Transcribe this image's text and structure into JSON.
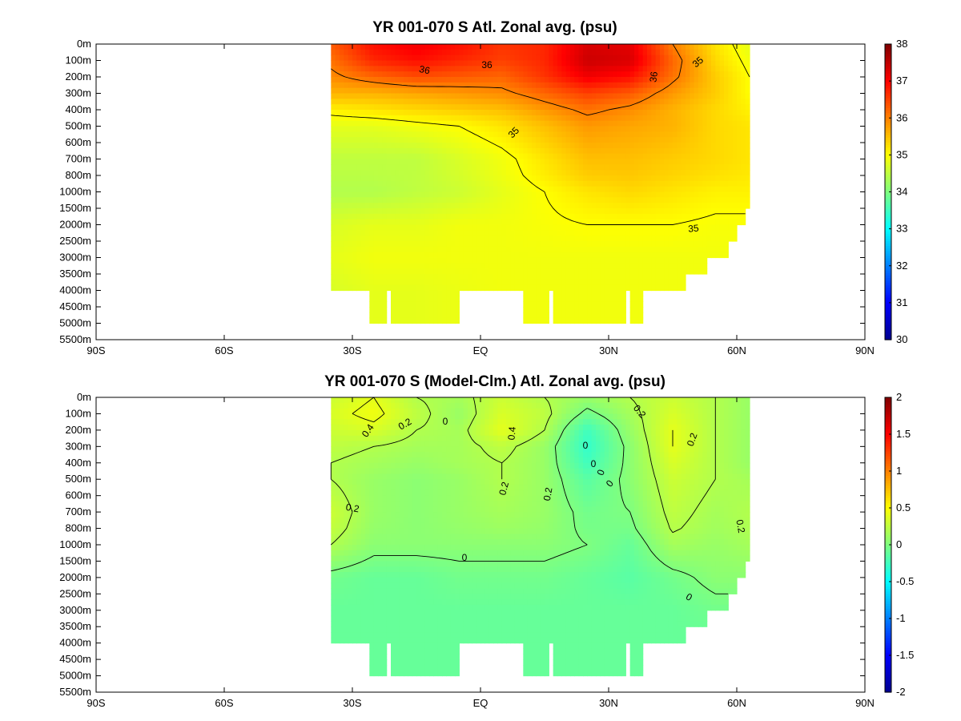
{
  "chart_data": [
    {
      "type": "heatmap",
      "title": "YR 001-070 S Atl. Zonal avg. (psu)",
      "xlabel": "",
      "ylabel": "",
      "x_ticks": [
        "90S",
        "60S",
        "30S",
        "EQ",
        "30N",
        "60N",
        "90N"
      ],
      "x_tick_values": [
        -90,
        -60,
        -30,
        0,
        30,
        60,
        90
      ],
      "y_ticks": [
        "0m",
        "100m",
        "200m",
        "300m",
        "400m",
        "500m",
        "600m",
        "700m",
        "800m",
        "1000m",
        "1500m",
        "2000m",
        "2500m",
        "3000m",
        "3500m",
        "4000m",
        "4500m",
        "5000m",
        "5500m"
      ],
      "y_tick_values": [
        0,
        100,
        200,
        300,
        400,
        500,
        600,
        700,
        800,
        1000,
        1500,
        2000,
        2500,
        3000,
        3500,
        4000,
        4500,
        5000,
        5500
      ],
      "y_axis": "depth, inverted, index-spaced levels",
      "xlim": [
        -90,
        90
      ],
      "colorbar": {
        "min": 30,
        "max": 38,
        "ticks": [
          "38",
          "37",
          "36",
          "35",
          "34",
          "33",
          "32",
          "31",
          "30"
        ],
        "tick_values": [
          38,
          37,
          36,
          35,
          34,
          33,
          32,
          31,
          30
        ]
      },
      "colormap": [
        "#00008f",
        "#0000ff",
        "#00ffff",
        "#7fff7f",
        "#ffff00",
        "#ff0000",
        "#7f0000"
      ],
      "contour_labels": [
        "36",
        "36",
        "36",
        "35",
        "35",
        "35"
      ],
      "data_extent_lat": [
        -35,
        63
      ],
      "land_mask_bottom": [
        {
          "lat": [
            -35,
            -25.5
          ],
          "bottom": 4000
        },
        {
          "lat": [
            -25.5,
            -22
          ],
          "bottom": 5000
        },
        {
          "lat": [
            -22,
            -20.5
          ],
          "bottom": 4000
        },
        {
          "lat": [
            -20.5,
            -5
          ],
          "bottom": 5000
        },
        {
          "lat": [
            -5,
            10
          ],
          "bottom": 4000
        },
        {
          "lat": [
            10,
            16
          ],
          "bottom": 5000
        },
        {
          "lat": [
            16,
            17.5
          ],
          "bottom": 4000
        },
        {
          "lat": [
            17.5,
            34
          ],
          "bottom": 5000
        },
        {
          "lat": [
            34,
            35
          ],
          "bottom": 4000
        },
        {
          "lat": [
            35,
            38.5
          ],
          "bottom": 5000
        },
        {
          "lat": [
            38.5,
            48.5
          ],
          "bottom": 4000
        },
        {
          "lat": [
            48.5,
            53
          ],
          "bottom": 3500
        },
        {
          "lat": [
            53,
            58.5
          ],
          "bottom": 3000
        },
        {
          "lat": [
            58.5,
            60.5
          ],
          "bottom": 2500
        },
        {
          "lat": [
            60.5,
            62
          ],
          "bottom": 2000
        },
        {
          "lat": [
            62,
            63
          ],
          "bottom": 1500
        }
      ],
      "field_grid": {
        "lat": [
          -35,
          -25,
          -15,
          -5,
          5,
          15,
          25,
          35,
          45,
          55,
          63
        ],
        "depth": [
          0,
          100,
          200,
          300,
          400,
          500,
          700,
          1000,
          2000,
          3000,
          4000,
          5000
        ],
        "values": [
          [
            36.3,
            36.9,
            37.1,
            36.9,
            36.6,
            36.7,
            37.3,
            37.2,
            36.0,
            35.2,
            34.8
          ],
          [
            36.1,
            36.7,
            36.9,
            36.7,
            36.5,
            36.7,
            37.4,
            37.3,
            36.2,
            35.3,
            34.9
          ],
          [
            35.9,
            36.2,
            36.4,
            36.3,
            36.2,
            36.6,
            37.1,
            36.9,
            36.1,
            35.4,
            35.0
          ],
          [
            35.6,
            35.6,
            35.7,
            35.8,
            35.9,
            36.2,
            36.5,
            36.3,
            35.8,
            35.4,
            35.0
          ],
          [
            35.1,
            35.2,
            35.3,
            35.4,
            35.5,
            35.8,
            36.1,
            35.9,
            35.6,
            35.3,
            35.1
          ],
          [
            34.8,
            34.8,
            34.9,
            35.0,
            35.2,
            35.5,
            35.8,
            35.7,
            35.6,
            35.3,
            35.2
          ],
          [
            34.5,
            34.5,
            34.5,
            34.7,
            34.9,
            35.2,
            35.5,
            35.5,
            35.4,
            35.3,
            35.2
          ],
          [
            34.4,
            34.4,
            34.5,
            34.6,
            34.8,
            35.0,
            35.2,
            35.3,
            35.2,
            35.1,
            35.1
          ],
          [
            34.7,
            34.8,
            34.8,
            34.9,
            34.9,
            34.95,
            35.0,
            35.0,
            35.0,
            34.95,
            34.95
          ],
          [
            34.8,
            34.9,
            34.9,
            34.9,
            34.9,
            34.9,
            34.9,
            34.9,
            34.9,
            34.9,
            34.9
          ],
          [
            34.7,
            34.8,
            34.8,
            34.85,
            34.9,
            34.9,
            34.9,
            34.9,
            34.9,
            34.9,
            34.9
          ],
          [
            34.7,
            34.8,
            34.8,
            34.85,
            34.9,
            34.9,
            34.9,
            34.9,
            34.9,
            34.9,
            34.9
          ]
        ]
      }
    },
    {
      "type": "heatmap",
      "title": "YR 001-070 S (Model-Clm.) Atl. Zonal avg. (psu)",
      "xlabel": "",
      "ylabel": "",
      "x_ticks": [
        "90S",
        "60S",
        "30S",
        "EQ",
        "30N",
        "60N",
        "90N"
      ],
      "x_tick_values": [
        -90,
        -60,
        -30,
        0,
        30,
        60,
        90
      ],
      "y_ticks": [
        "0m",
        "100m",
        "200m",
        "300m",
        "400m",
        "500m",
        "600m",
        "700m",
        "800m",
        "1000m",
        "1500m",
        "2000m",
        "2500m",
        "3000m",
        "3500m",
        "4000m",
        "4500m",
        "5000m",
        "5500m"
      ],
      "y_tick_values": [
        0,
        100,
        200,
        300,
        400,
        500,
        600,
        700,
        800,
        1000,
        1500,
        2000,
        2500,
        3000,
        3500,
        4000,
        4500,
        5000,
        5500
      ],
      "y_axis": "depth, inverted, index-spaced levels",
      "xlim": [
        -90,
        90
      ],
      "colorbar": {
        "min": -2,
        "max": 2,
        "ticks": [
          "2",
          "1.5",
          "1",
          "0.5",
          "0",
          "-0.5",
          "-1",
          "-1.5",
          "-2"
        ],
        "tick_values": [
          2,
          1.5,
          1,
          0.5,
          0,
          -0.5,
          -1,
          -1.5,
          -2
        ]
      },
      "colormap": [
        "#00008f",
        "#0000ff",
        "#00ffff",
        "#7fff7f",
        "#ffff00",
        "#ff0000",
        "#7f0000"
      ],
      "contour_labels": [
        "0.4",
        "0.2",
        "0",
        "0.4",
        "0.2",
        "0.2",
        "0",
        "0",
        "0",
        "0",
        "0.2",
        "0.2",
        "0.2",
        "0",
        "0",
        "0.2"
      ],
      "data_extent_lat": [
        -35,
        63
      ],
      "field_grid": {
        "lat": [
          -35,
          -25,
          -15,
          -5,
          5,
          15,
          25,
          35,
          45,
          55,
          63
        ],
        "depth": [
          0,
          100,
          200,
          300,
          400,
          500,
          700,
          1000,
          2000,
          3000,
          4000,
          5000
        ],
        "values": [
          [
            0.3,
            0.4,
            0.2,
            0.15,
            0.3,
            0.2,
            0.1,
            0.2,
            0.3,
            0.2,
            0.1
          ],
          [
            0.35,
            0.45,
            0.25,
            0.1,
            0.35,
            0.25,
            -0.05,
            0.15,
            0.35,
            0.2,
            0.1
          ],
          [
            0.3,
            0.35,
            0.2,
            0.15,
            0.4,
            0.2,
            -0.25,
            0.1,
            0.4,
            0.2,
            0.1
          ],
          [
            0.25,
            0.2,
            0.15,
            0.15,
            0.25,
            0.1,
            -0.3,
            0.05,
            0.4,
            0.2,
            0.1
          ],
          [
            0.2,
            0.15,
            0.1,
            0.15,
            0.2,
            0.1,
            -0.25,
            0.05,
            0.35,
            0.2,
            0.1
          ],
          [
            0.2,
            0.1,
            0.05,
            0.1,
            0.2,
            0.1,
            -0.15,
            0.05,
            0.3,
            0.2,
            0.15
          ],
          [
            0.3,
            0.1,
            0.05,
            0.1,
            0.15,
            0.1,
            -0.05,
            0.0,
            0.25,
            0.15,
            0.2
          ],
          [
            0.2,
            0.05,
            0.05,
            0.05,
            0.05,
            0.05,
            0.0,
            -0.1,
            0.15,
            0.1,
            0.15
          ],
          [
            -0.05,
            -0.1,
            -0.1,
            -0.05,
            -0.05,
            -0.05,
            -0.1,
            -0.15,
            -0.05,
            0.05,
            0.05
          ],
          [
            -0.1,
            -0.1,
            -0.1,
            -0.1,
            -0.1,
            -0.1,
            -0.1,
            -0.1,
            -0.1,
            -0.05,
            -0.05
          ],
          [
            -0.1,
            -0.1,
            -0.1,
            -0.1,
            -0.1,
            -0.1,
            -0.1,
            -0.1,
            -0.1,
            -0.1,
            -0.1
          ],
          [
            -0.1,
            -0.1,
            -0.1,
            -0.1,
            -0.1,
            -0.1,
            -0.1,
            -0.1,
            -0.1,
            -0.1,
            -0.1
          ]
        ]
      }
    }
  ]
}
